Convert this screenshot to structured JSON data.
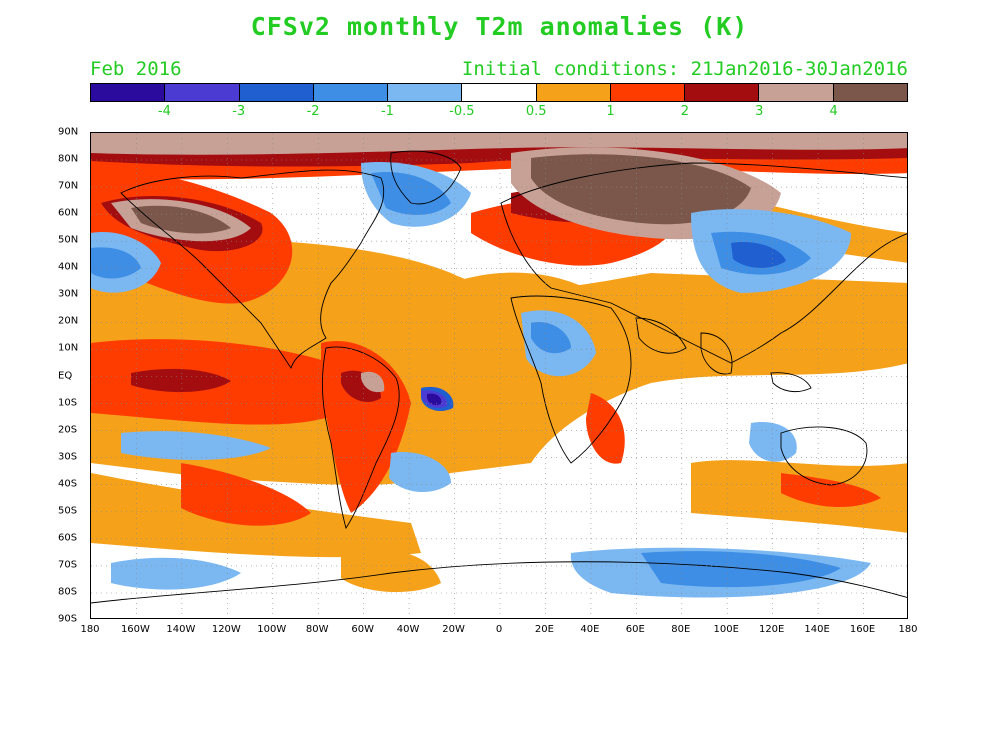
{
  "header": {
    "title": "CFSv2 monthly T2m anomalies (K)",
    "valid_month": "Feb 2016",
    "initial_conditions": "Initial conditions: 21Jan2016-30Jan2016"
  },
  "colorbar": {
    "colors": [
      "#2b0b9e",
      "#4b3bd3",
      "#1f5fd0",
      "#3f8ee6",
      "#7bb8f2",
      "#ffffff",
      "#f6a11a",
      "#ff3c00",
      "#a30d10",
      "#c8a196",
      "#7a574a"
    ],
    "labels": [
      "-4",
      "-3",
      "-2",
      "-1",
      "-0.5",
      "0.5",
      "1",
      "2",
      "3",
      "4"
    ]
  },
  "map": {
    "lat_labels": [
      "90N",
      "80N",
      "70N",
      "60N",
      "50N",
      "40N",
      "30N",
      "20N",
      "10N",
      "EQ",
      "10S",
      "20S",
      "30S",
      "40S",
      "50S",
      "60S",
      "70S",
      "80S",
      "90S"
    ],
    "lon_labels": [
      "180",
      "160W",
      "140W",
      "120W",
      "100W",
      "80W",
      "60W",
      "40W",
      "20W",
      "0",
      "20E",
      "40E",
      "60E",
      "80E",
      "100E",
      "120E",
      "140E",
      "160E",
      "180"
    ]
  }
}
